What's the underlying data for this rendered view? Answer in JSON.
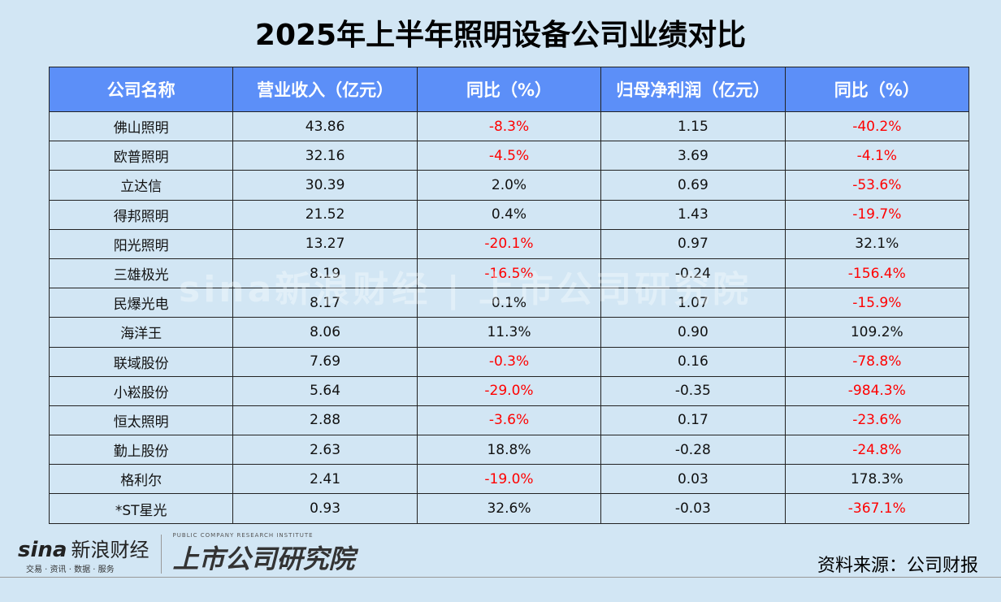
{
  "title": "2025年上半年照明设备公司业绩对比",
  "colors": {
    "header_bg": "#5c8ff8",
    "background": "#d2e6f4",
    "negative": "#ff0000"
  },
  "headers": [
    "公司名称",
    "营业收入（亿元）",
    "同比（%）",
    "归母净利润（亿元）",
    "同比（%）"
  ],
  "rows": [
    [
      "佛山照明",
      "43.86",
      "-8.3%",
      "1.15",
      "-40.2%"
    ],
    [
      "欧普照明",
      "32.16",
      "-4.5%",
      "3.69",
      "-4.1%"
    ],
    [
      "立达信",
      "30.39",
      "2.0%",
      "0.69",
      "-53.6%"
    ],
    [
      "得邦照明",
      "21.52",
      "0.4%",
      "1.43",
      "-19.7%"
    ],
    [
      "阳光照明",
      "13.27",
      "-20.1%",
      "0.97",
      "32.1%"
    ],
    [
      "三雄极光",
      "8.19",
      "-16.5%",
      "-0.24",
      "-156.4%"
    ],
    [
      "民爆光电",
      "8.17",
      "0.1%",
      "1.07",
      "-15.9%"
    ],
    [
      "海洋王",
      "8.06",
      "11.3%",
      "0.90",
      "109.2%"
    ],
    [
      "联域股份",
      "7.69",
      "-0.3%",
      "0.16",
      "-78.8%"
    ],
    [
      "小崧股份",
      "5.64",
      "-29.0%",
      "-0.35",
      "-984.3%"
    ],
    [
      "恒太照明",
      "2.88",
      "-3.6%",
      "0.17",
      "-23.6%"
    ],
    [
      "勤上股份",
      "2.63",
      "18.8%",
      "-0.28",
      "-24.8%"
    ],
    [
      "格利尔",
      "2.41",
      "-19.0%",
      "0.03",
      "178.3%"
    ],
    [
      "*ST星光",
      "0.93",
      "32.6%",
      "-0.03",
      "-367.1%"
    ]
  ],
  "logos": {
    "sina": "sina",
    "sina_cn": "新浪财经",
    "sina_sub": "交易 · 资讯 · 数据 · 服务",
    "inst": "上市公司研究院",
    "inst_en": "PUBLIC COMPANY RESEARCH INSTITUTE"
  },
  "watermark": "sina新浪财经 | 上市公司研究院",
  "source": "资料来源：公司财报"
}
